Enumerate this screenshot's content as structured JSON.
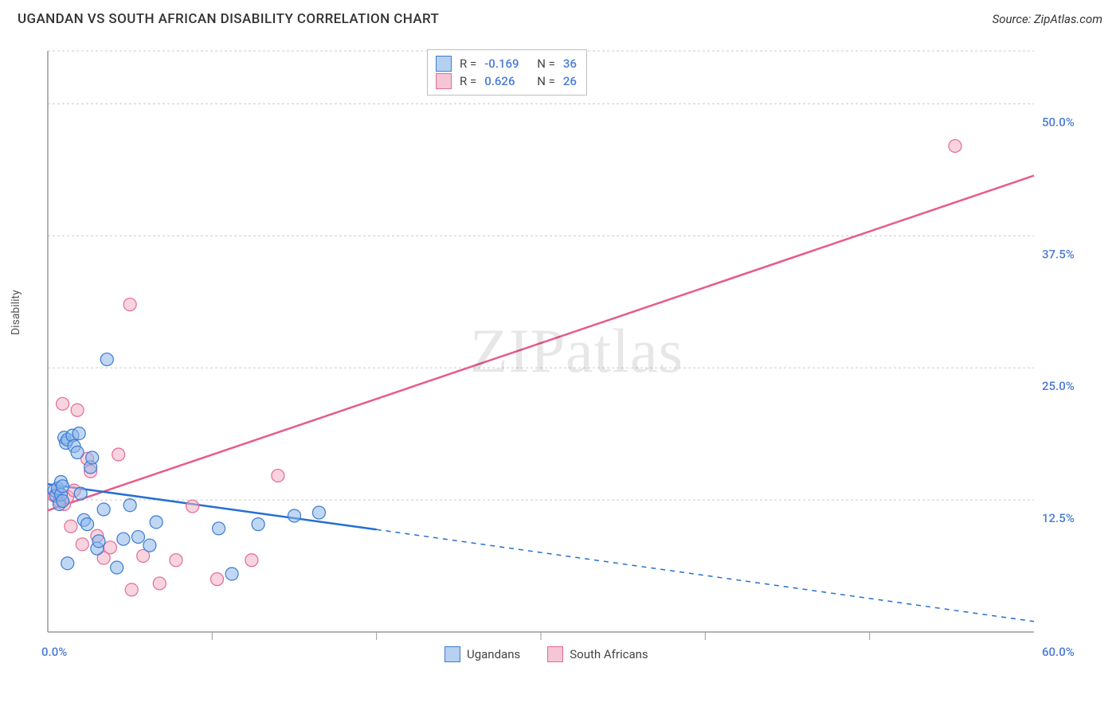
{
  "header": {
    "title": "UGANDAN VS SOUTH AFRICAN DISABILITY CORRELATION CHART",
    "source_label": "Source: ZipAtlas.com"
  },
  "watermark": {
    "text": "ZIPatlas",
    "color": "#000000",
    "opacity": 0.09,
    "fontsize": 78
  },
  "chart": {
    "type": "scatter",
    "xlabel": "",
    "ylabel": "Disability",
    "ylabel_fontsize": 14,
    "xlim": [
      0,
      60
    ],
    "ylim": [
      0,
      55
    ],
    "xtick_step": 10,
    "y_gridlines": [
      12.5,
      25.0,
      37.5,
      50.0
    ],
    "y_tick_labels": [
      "12.5%",
      "25.0%",
      "37.5%",
      "50.0%"
    ],
    "x_origin_label": "0.0%",
    "x_end_label": "60.0%",
    "y_tick_label_color": "#4b7bd6",
    "grid_color": "#cccccc",
    "grid_dash": "3 3",
    "axis_color": "#999999",
    "background_color": "#ffffff",
    "marker_radius": 8
  },
  "series": {
    "ugandans": {
      "label": "Ugandans",
      "R": "-0.169",
      "N": "36",
      "marker_fill": "#8cb6ea",
      "marker_stroke": "#3a7bd5",
      "line_color": "#256fd1",
      "trend_solid": {
        "x1": 0,
        "y1": 14.0,
        "x2": 20,
        "y2": 9.7
      },
      "trend_dash": {
        "x1": 20,
        "y1": 9.7,
        "x2": 60,
        "y2": 1.0
      },
      "points": [
        [
          0.4,
          13.4
        ],
        [
          0.5,
          12.9
        ],
        [
          0.6,
          13.6
        ],
        [
          0.7,
          12.1
        ],
        [
          0.8,
          13.0
        ],
        [
          0.8,
          14.2
        ],
        [
          0.9,
          12.4
        ],
        [
          0.9,
          13.8
        ],
        [
          1.0,
          18.4
        ],
        [
          1.1,
          17.9
        ],
        [
          1.2,
          18.2
        ],
        [
          1.5,
          18.6
        ],
        [
          1.6,
          17.6
        ],
        [
          1.8,
          17.0
        ],
        [
          1.9,
          18.8
        ],
        [
          1.2,
          6.5
        ],
        [
          2.0,
          13.1
        ],
        [
          2.2,
          10.6
        ],
        [
          2.4,
          10.2
        ],
        [
          2.6,
          15.6
        ],
        [
          2.7,
          16.5
        ],
        [
          3.0,
          7.9
        ],
        [
          3.1,
          8.6
        ],
        [
          3.4,
          11.6
        ],
        [
          3.6,
          25.8
        ],
        [
          4.2,
          6.1
        ],
        [
          4.6,
          8.8
        ],
        [
          5.0,
          12.0
        ],
        [
          5.5,
          9.0
        ],
        [
          6.2,
          8.2
        ],
        [
          6.6,
          10.4
        ],
        [
          10.4,
          9.8
        ],
        [
          11.2,
          5.5
        ],
        [
          12.8,
          10.2
        ],
        [
          15.0,
          11.0
        ],
        [
          16.5,
          11.3
        ]
      ]
    },
    "south_africans": {
      "label": "South Africans",
      "R": "0.626",
      "N": "26",
      "marker_fill": "#f3b0c2",
      "marker_stroke": "#e46a94",
      "line_color": "#e85a8a",
      "trend_solid": {
        "x1": 0,
        "y1": 11.5,
        "x2": 60,
        "y2": 43.2
      },
      "points": [
        [
          0.4,
          12.9
        ],
        [
          0.6,
          13.2
        ],
        [
          0.7,
          12.4
        ],
        [
          0.9,
          21.6
        ],
        [
          1.0,
          12.1
        ],
        [
          1.2,
          12.8
        ],
        [
          1.4,
          10.0
        ],
        [
          1.6,
          13.4
        ],
        [
          1.8,
          21.0
        ],
        [
          2.1,
          8.3
        ],
        [
          2.4,
          16.4
        ],
        [
          2.6,
          15.2
        ],
        [
          3.0,
          9.1
        ],
        [
          3.4,
          7.0
        ],
        [
          3.8,
          8.0
        ],
        [
          4.3,
          16.8
        ],
        [
          5.0,
          31.0
        ],
        [
          5.1,
          4.0
        ],
        [
          5.8,
          7.2
        ],
        [
          6.8,
          4.6
        ],
        [
          7.8,
          6.8
        ],
        [
          8.8,
          11.9
        ],
        [
          10.3,
          5.0
        ],
        [
          12.4,
          6.8
        ],
        [
          14.0,
          14.8
        ],
        [
          55.2,
          46.0
        ]
      ]
    }
  },
  "top_legend": {
    "R_label": "R =",
    "N_label": "N ="
  },
  "bottom_legend": {
    "left": "Ugandans",
    "right": "South Africans"
  }
}
